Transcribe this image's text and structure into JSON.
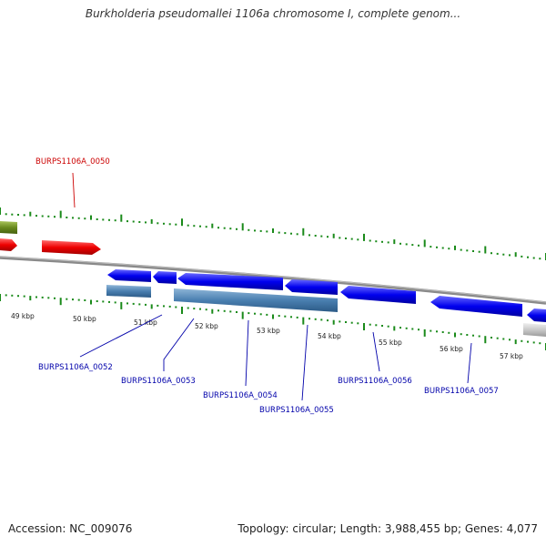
{
  "title": "Burkholderia pseudomallei 1106a chromosome I, complete genom...",
  "footer": {
    "accession": "Accession: NC_009076",
    "summary": "Topology: circular; Length: 3,988,455 bp; Genes: 4,077"
  },
  "colors": {
    "forward_gene": "#e00000",
    "reverse_gene": "#0000dd",
    "cds_bar": "#4a7fb0",
    "olive_gene": "#6a8a1e",
    "gray_gene": "#c8c8c8",
    "backbone": "#888888",
    "tick": "#1a8a1a",
    "highlight_label": "#cc0000",
    "normal_label": "#0000aa"
  },
  "axis_ticks": [
    {
      "label": "49 kbp"
    },
    {
      "label": "50 kbp"
    },
    {
      "label": "51 kbp"
    },
    {
      "label": "52 kbp"
    },
    {
      "label": "53 kbp"
    },
    {
      "label": "54 kbp"
    },
    {
      "label": "55 kbp"
    },
    {
      "label": "56 kbp"
    },
    {
      "label": "57 kbp"
    }
  ],
  "genes": [
    {
      "id": "BURPS1106A_0050",
      "strand": "forward",
      "highlighted": true
    },
    {
      "id": "BURPS1106A_0052",
      "strand": "reverse",
      "highlighted": false
    },
    {
      "id": "BURPS1106A_0053",
      "strand": "reverse",
      "highlighted": false
    },
    {
      "id": "BURPS1106A_0054",
      "strand": "reverse",
      "highlighted": false
    },
    {
      "id": "BURPS1106A_0055",
      "strand": "reverse",
      "highlighted": false
    },
    {
      "id": "BURPS1106A_0056",
      "strand": "reverse",
      "highlighted": false
    },
    {
      "id": "BURPS1106A_0057",
      "strand": "reverse",
      "highlighted": false
    }
  ]
}
